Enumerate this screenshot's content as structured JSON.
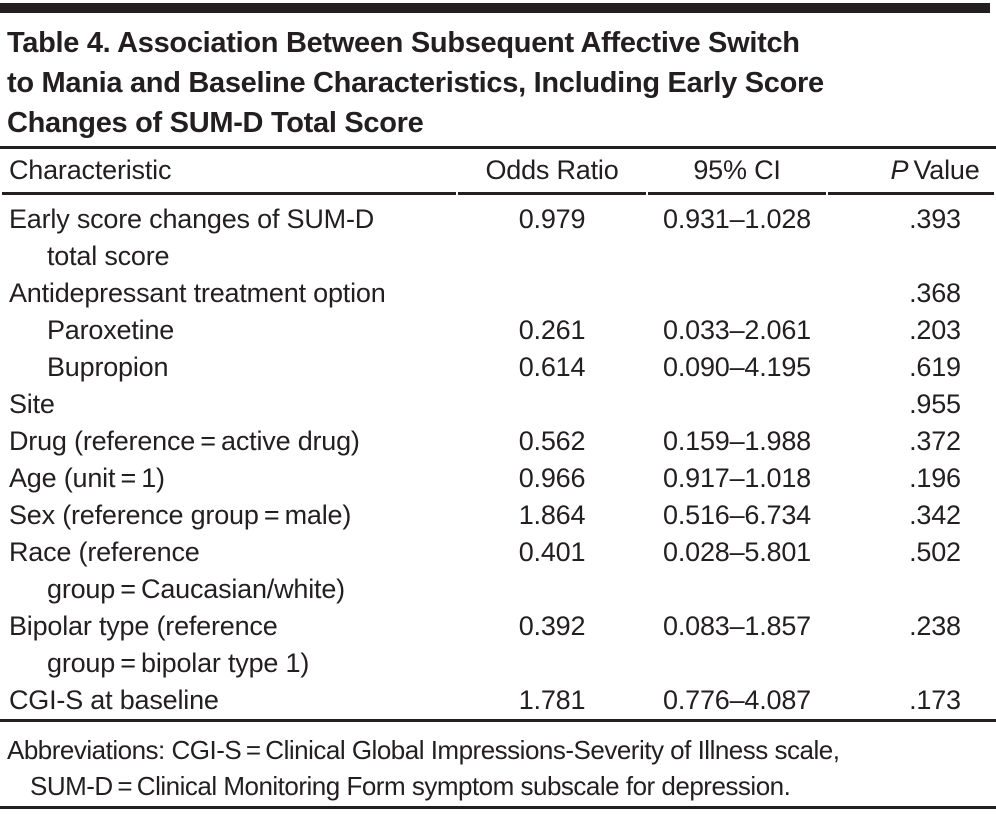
{
  "colors": {
    "text": "#231f20",
    "rule": "#231f20",
    "background": "#ffffff"
  },
  "title": {
    "line1": "Table 4. Association Between Subsequent Affective Switch",
    "line2": "to Mania and Baseline Characteristics, Including Early Score",
    "line3": "Changes of SUM-D Total Score"
  },
  "table": {
    "headers": {
      "characteristic": "Characteristic",
      "odds_ratio": "Odds Ratio",
      "ci": "95% CI",
      "p_italic": "P",
      "p_rest": " Value"
    },
    "rows": [
      {
        "label": "Early score changes of SUM-D",
        "label2": "total score",
        "indent": false,
        "odds_ratio": "0.979",
        "ci": "0.931–1.028",
        "p": ".393"
      },
      {
        "label": "Antidepressant treatment option",
        "indent": false,
        "odds_ratio": "",
        "ci": "",
        "p": ".368"
      },
      {
        "label": "Paroxetine",
        "indent": true,
        "odds_ratio": "0.261",
        "ci": "0.033–2.061",
        "p": ".203"
      },
      {
        "label": "Bupropion",
        "indent": true,
        "odds_ratio": "0.614",
        "ci": "0.090–4.195",
        "p": ".619"
      },
      {
        "label": "Site",
        "indent": false,
        "odds_ratio": "",
        "ci": "",
        "p": ".955"
      },
      {
        "label": "Drug (reference = active drug)",
        "indent": false,
        "odds_ratio": "0.562",
        "ci": "0.159–1.988",
        "p": ".372"
      },
      {
        "label": "Age (unit = 1)",
        "indent": false,
        "odds_ratio": "0.966",
        "ci": "0.917–1.018",
        "p": ".196"
      },
      {
        "label": "Sex (reference group = male)",
        "indent": false,
        "odds_ratio": "1.864",
        "ci": "0.516–6.734",
        "p": ".342"
      },
      {
        "label": "Race (reference",
        "label2": "group = Caucasian/white)",
        "indent": false,
        "odds_ratio": "0.401",
        "ci": "0.028–5.801",
        "p": ".502"
      },
      {
        "label": "Bipolar type (reference",
        "label2": "group = bipolar type 1)",
        "indent": false,
        "odds_ratio": "0.392",
        "ci": "0.083–1.857",
        "p": ".238"
      },
      {
        "label": "CGI-S at baseline",
        "indent": false,
        "odds_ratio": "1.781",
        "ci": "0.776–4.087",
        "p": ".173"
      }
    ]
  },
  "footnote": {
    "line1": "Abbreviations: CGI-S = Clinical Global Impressions-Severity of Illness scale,",
    "line2": "SUM-D = Clinical Monitoring Form symptom subscale for depression."
  }
}
